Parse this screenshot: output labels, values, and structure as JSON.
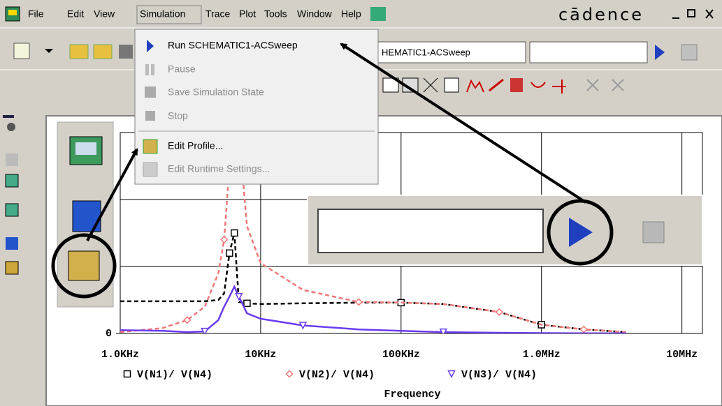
{
  "menu_bar": {
    "items": [
      "File",
      "Edit",
      "View",
      "Simulation",
      "Trace",
      "Plot",
      "Tools",
      "Window",
      "Help"
    ],
    "brand": "cādence"
  },
  "toolbar": {
    "profile": "HEMATIC1-ACSweep"
  },
  "simulation_menu": {
    "items": [
      {
        "label": "Run  SCHEMATIC1-ACSweep",
        "enabled": true
      },
      {
        "label": "Pause",
        "enabled": false
      },
      {
        "label": "Save Simulation State",
        "enabled": false
      },
      {
        "label": "Stop",
        "enabled": false
      },
      {
        "label": "Edit Profile...",
        "enabled": true
      },
      {
        "label": "Edit Runtime Settings...",
        "enabled": false
      }
    ]
  },
  "plot": {
    "type": "line",
    "x_label": "Frequency",
    "log_x": true,
    "x": [
      1000,
      2000,
      3000,
      4000,
      5000,
      5500,
      6000,
      6500,
      7000,
      8000,
      10000,
      20000,
      50000,
      100000,
      200000,
      500000,
      1000000,
      2000000,
      4000000
    ],
    "xlim": [
      1000,
      14000000
    ],
    "xticks": [
      {
        "value": 1000,
        "label": "1.0KHz"
      },
      {
        "value": 10000,
        "label": "10KHz"
      },
      {
        "value": 100000,
        "label": "100KHz"
      },
      {
        "value": 1000000,
        "label": "1.0MHz"
      },
      {
        "value": 10000000,
        "label": "10MHz"
      }
    ],
    "ylim": [
      0,
      3
    ],
    "yticks": [
      0
    ],
    "grid": true,
    "series": [
      {
        "name": "V(N1)/ V(N4)",
        "color": "#000000",
        "marker": "square",
        "values": [
          0.48,
          0.48,
          0.48,
          0.48,
          0.5,
          0.6,
          1.2,
          1.5,
          0.47,
          0.45,
          0.44,
          0.45,
          0.46,
          0.46,
          0.44,
          0.32,
          0.13,
          0.06,
          0.02
        ]
      },
      {
        "name": "V(N2)/ V(N4)",
        "color": "#f07878",
        "marker": "diamond",
        "values": [
          0.02,
          0.08,
          0.2,
          0.4,
          0.9,
          1.4,
          2.5,
          4.2,
          3.0,
          1.6,
          1.05,
          0.65,
          0.47,
          0.46,
          0.44,
          0.32,
          0.13,
          0.06,
          0.02
        ]
      },
      {
        "name": "V(N3)/ V(N4)",
        "color": "#6a3cf0",
        "marker": "triangle",
        "values": [
          0.05,
          0.04,
          0.02,
          0.03,
          0.2,
          0.4,
          0.55,
          0.7,
          0.55,
          0.3,
          0.22,
          0.12,
          0.06,
          0.04,
          0.02,
          0.01,
          0.005,
          0.003,
          0.002
        ]
      }
    ]
  }
}
